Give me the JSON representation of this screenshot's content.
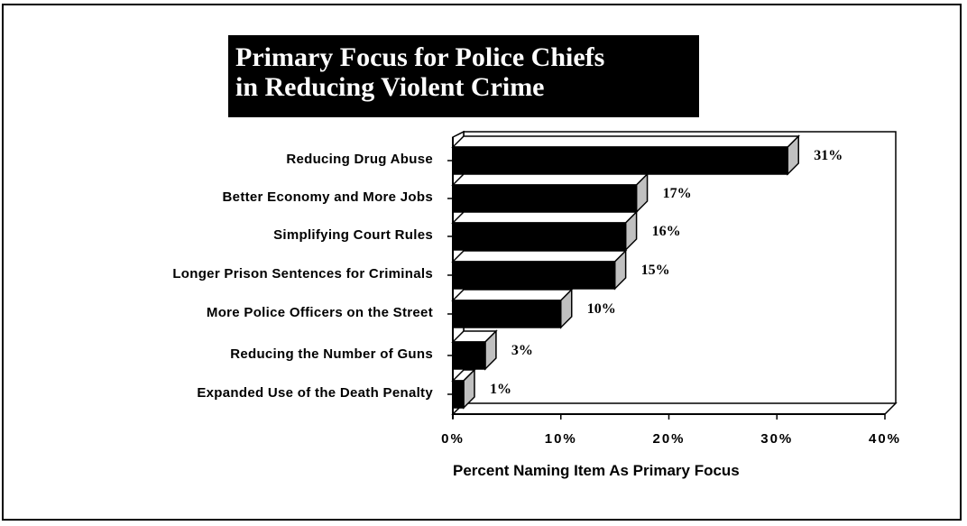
{
  "title_lines": [
    "Primary Focus for Police Chiefs",
    "in Reducing Violent Crime"
  ],
  "chart_data": {
    "type": "bar",
    "orientation": "horizontal",
    "title": "Primary Focus for Police Chiefs in Reducing Violent Crime",
    "categories": [
      "Reducing Drug Abuse",
      "Better Economy and More Jobs",
      "Simplifying Court Rules",
      "Longer Prison Sentences for Criminals",
      "More Police Officers on the Street",
      "Reducing the Number of Guns",
      "Expanded Use of the Death Penalty"
    ],
    "values": [
      31,
      17,
      16,
      15,
      10,
      3,
      1
    ],
    "value_labels": [
      "31%",
      "17%",
      "16%",
      "15%",
      "10%",
      "3%",
      "1%"
    ],
    "xlabel": "Percent Naming Item As Primary Focus",
    "ylabel": "",
    "xlim": [
      0,
      40
    ],
    "x_ticks": [
      0,
      10,
      20,
      30,
      40
    ],
    "x_tick_labels": [
      "0%",
      "10%",
      "20%",
      "30%",
      "40%"
    ],
    "grid": false,
    "legend": "none",
    "style": "3d",
    "colors": {
      "bar_front": "#000000",
      "bar_side": "#c0c0c0",
      "bar_top": "#ffffff"
    }
  }
}
